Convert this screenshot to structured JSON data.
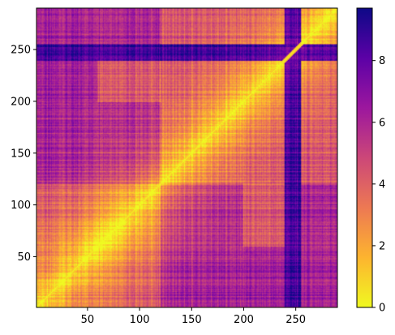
{
  "chart_data": {
    "type": "heatmap",
    "title": "",
    "xlabel": "",
    "ylabel": "",
    "n": 290,
    "xlim": [
      1,
      290
    ],
    "ylim": [
      1,
      290
    ],
    "origin": "lower",
    "colormap": "plasma_r",
    "value_range": [
      0,
      9.7
    ],
    "x_ticks": [
      {
        "value": 50,
        "label": "50"
      },
      {
        "value": 100,
        "label": "100"
      },
      {
        "value": 150,
        "label": "150"
      },
      {
        "value": 200,
        "label": "200"
      },
      {
        "value": 250,
        "label": "250"
      }
    ],
    "y_ticks": [
      {
        "value": 50,
        "label": "50"
      },
      {
        "value": 100,
        "label": "100"
      },
      {
        "value": 150,
        "label": "150"
      },
      {
        "value": 200,
        "label": "200"
      },
      {
        "value": 250,
        "label": "250"
      }
    ],
    "colorbar": {
      "ticks": [
        {
          "value": 0,
          "label": "0"
        },
        {
          "value": 2,
          "label": "2"
        },
        {
          "value": 4,
          "label": "4"
        },
        {
          "value": 6,
          "label": "6"
        },
        {
          "value": 8,
          "label": "8"
        }
      ]
    },
    "diagonal_value": 0,
    "low_value_blocks": [
      {
        "x": [
          1,
          120
        ],
        "y": [
          1,
          120
        ]
      },
      {
        "x": [
          120,
          290
        ],
        "y": [
          120,
          290
        ]
      },
      {
        "x": [
          200,
          240
        ],
        "y": [
          60,
          120
        ]
      }
    ],
    "high_value_bands": [
      {
        "axis": "row",
        "range": [
          240,
          255
        ],
        "value": 8.5
      },
      {
        "axis": "col",
        "range": [
          240,
          255
        ],
        "value": 8.5
      }
    ]
  },
  "colors": {
    "colormap_stops": [
      "#f0f921",
      "#fdb42f",
      "#ed7953",
      "#cc4778",
      "#9c179e",
      "#5c01a6",
      "#0d0887"
    ],
    "axis": "#000000",
    "background": "#ffffff"
  }
}
